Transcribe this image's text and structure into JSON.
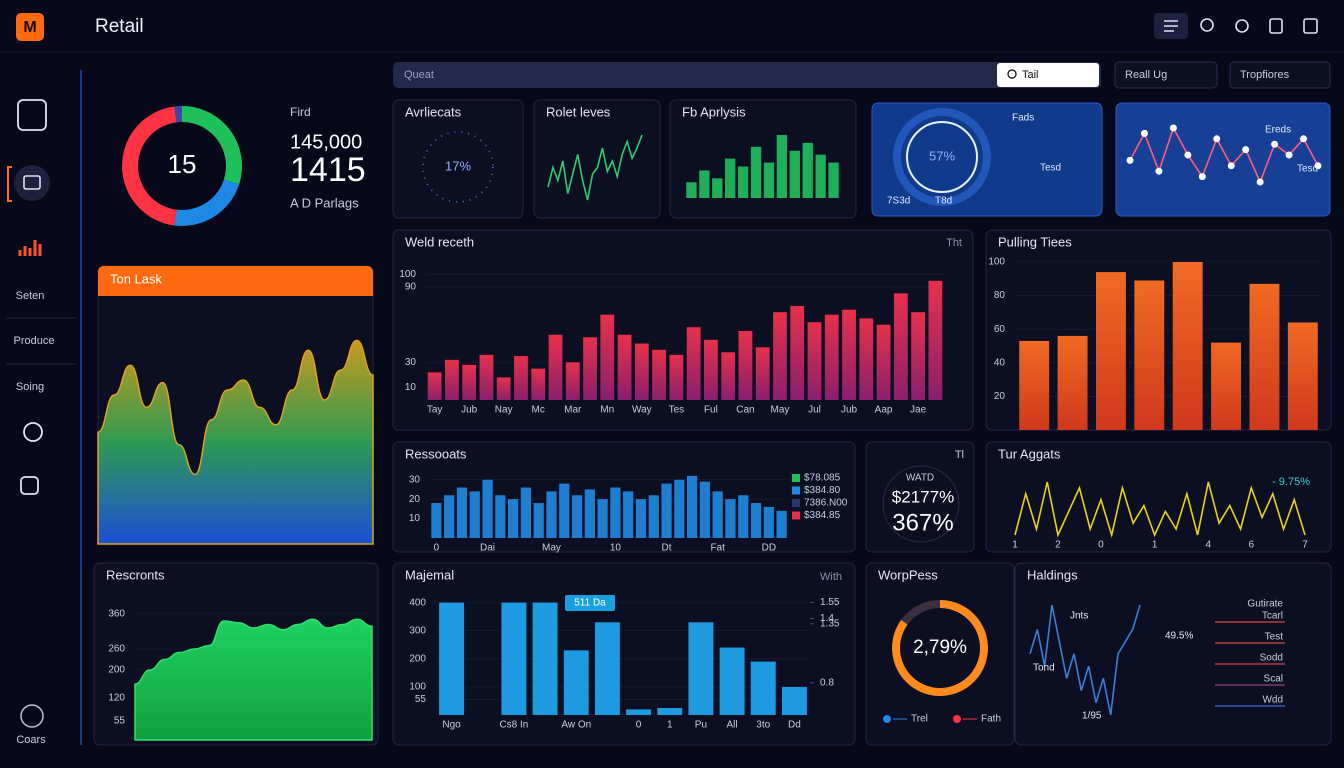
{
  "header": {
    "logo": "M",
    "title": "Retail"
  },
  "sidebar": {
    "items": [
      "Seten",
      "Produce",
      "Soing"
    ],
    "footer": "Coars"
  },
  "toolbar": {
    "search": "Queat",
    "search_button": "Tail",
    "filter_1": "Reall Ug",
    "filter_2": "Tropfiores"
  },
  "summary": {
    "label": "Fird",
    "value_1": "145,000",
    "value_2": "1415",
    "caption": "A D Parlags"
  },
  "chart_data": [
    {
      "type": "pie",
      "center_label": "15",
      "values": [
        30,
        22,
        46,
        2
      ],
      "colors": [
        "#1fbf5a",
        "#1e88e5",
        "#ff3344",
        "#3949ab"
      ]
    },
    {
      "type": "dial",
      "title": "Avrliecats",
      "label": "17%"
    },
    {
      "type": "line",
      "title": "Rolet leves",
      "values": [
        40,
        55,
        45,
        60,
        35,
        50,
        65,
        45,
        30,
        50,
        55,
        70,
        52,
        60,
        48,
        65,
        75,
        62,
        70,
        80
      ],
      "color": "#2ecc71"
    },
    {
      "type": "bar",
      "title": "Fb Aprlysis",
      "values": [
        20,
        35,
        25,
        50,
        40,
        65,
        45,
        80,
        60,
        70,
        55,
        45
      ],
      "color": "#1fae5a"
    },
    {
      "type": "dial",
      "label": "57%",
      "notes": [
        "Fads",
        "Tesd",
        "7S3d",
        "T8d"
      ]
    },
    {
      "type": "line",
      "values": [
        50,
        75,
        40,
        80,
        55,
        35,
        70,
        45,
        60,
        30,
        65,
        55,
        70,
        45
      ],
      "color": "#ff5d7a",
      "notes": [
        "Ereds",
        "Tesd"
      ]
    },
    {
      "type": "area",
      "title": "Ton Lask",
      "values": [
        45,
        60,
        72,
        55,
        65,
        40,
        28,
        50,
        62,
        66,
        55,
        48,
        62,
        78,
        58,
        70,
        82,
        68
      ],
      "gradient": [
        "#c89a1e",
        "#2e9a52",
        "#1a4fd6"
      ]
    },
    {
      "type": "area",
      "title": "Rescronts",
      "values": [
        160,
        200,
        230,
        250,
        260,
        270,
        340,
        335,
        320,
        330,
        315,
        330,
        345,
        320,
        330,
        345,
        325
      ],
      "ylim": [
        0,
        400
      ],
      "yticks": [
        55,
        120,
        200,
        260,
        360
      ],
      "gradient": [
        "#1fd060",
        "#10a040"
      ]
    },
    {
      "type": "bar",
      "title": "Weld receth",
      "note": "Tht",
      "values": [
        22,
        32,
        28,
        36,
        18,
        35,
        25,
        52,
        30,
        50,
        68,
        52,
        45,
        40,
        36,
        58,
        48,
        38,
        55,
        42,
        70,
        75,
        62,
        68,
        72,
        65,
        60,
        85,
        70,
        95
      ],
      "categories": [
        "Tay",
        null,
        "Jub",
        null,
        "Nay",
        null,
        "Mc",
        null,
        "Mar",
        null,
        "Mn",
        null,
        "Way",
        null,
        "Tes",
        null,
        "Ful",
        null,
        "Can",
        null,
        "May",
        null,
        "Jul",
        null,
        "Jub",
        null,
        "Aap",
        null,
        "Jae",
        null
      ],
      "ylim": [
        0,
        110
      ],
      "yticks": [
        10,
        30,
        90,
        100
      ],
      "gradient": [
        "#e8304a",
        "#8a1f6e"
      ]
    },
    {
      "type": "bar",
      "title": "Pulling Tiees",
      "values": [
        53,
        56,
        94,
        89,
        100,
        52,
        87,
        64
      ],
      "ylim": [
        0,
        100
      ],
      "yticks": [
        20,
        40,
        60,
        80,
        100
      ],
      "gradient": [
        "#f06a24",
        "#d0381c"
      ]
    },
    {
      "type": "bar",
      "title": "Ressooats",
      "values": [
        18,
        22,
        26,
        24,
        30,
        22,
        20,
        26,
        18,
        24,
        28,
        22,
        25,
        20,
        26,
        24,
        20,
        22,
        28,
        30,
        32,
        29,
        24,
        20,
        22,
        18,
        16,
        14
      ],
      "categories": [
        "0",
        null,
        null,
        null,
        "Dai",
        null,
        null,
        null,
        null,
        "May",
        null,
        null,
        null,
        null,
        "10",
        null,
        null,
        null,
        "Dt",
        null,
        null,
        null,
        "Fat",
        null,
        null,
        null,
        "DD",
        null
      ],
      "ylim": [
        0,
        35
      ],
      "yticks": [
        10,
        20,
        30
      ],
      "color": "#1e7fd0",
      "legend": [
        {
          "name": "$78.085",
          "color": "#1fbf5a"
        },
        {
          "name": "$384.80",
          "color": "#1e88e5"
        },
        {
          "name": "7386.N00",
          "color": "#2a3570"
        },
        {
          "name": "$384.85",
          "color": "#e0304a"
        }
      ]
    },
    {
      "type": "stat",
      "label": "WATD",
      "value_1": "$2177%",
      "value_2": "367%",
      "note": "Tl"
    },
    {
      "type": "line",
      "title": "Tur Aggats",
      "note": "- 9.75%",
      "values": [
        5,
        12,
        6,
        14,
        5,
        9,
        13,
        6,
        11,
        5,
        13,
        7,
        10,
        5,
        9,
        6,
        12,
        5,
        14,
        7,
        10,
        6,
        13,
        8,
        12,
        6,
        11,
        5
      ],
      "categories": [
        "1",
        null,
        null,
        null,
        "2",
        null,
        null,
        null,
        "0",
        null,
        null,
        null,
        null,
        "1",
        null,
        null,
        null,
        null,
        "4",
        null,
        null,
        null,
        "6",
        null,
        null,
        null,
        null,
        "7"
      ],
      "color": "#e8d21a"
    },
    {
      "type": "bar",
      "title": "Majemal",
      "note": "With",
      "annotation": "511 Da",
      "values": [
        400,
        0,
        400,
        400,
        230,
        330,
        20,
        25,
        330,
        240,
        190,
        100
      ],
      "categories": [
        "Ngo",
        null,
        "Cs8 In",
        null,
        "Aw On",
        null,
        "0",
        "1",
        "Pu",
        "All",
        "3to",
        "Dd"
      ],
      "ylim": [
        0,
        420
      ],
      "yticks": [
        55,
        100,
        200,
        300,
        400
      ],
      "y2lim": [
        0.5,
        1.6
      ],
      "y2ticks": [
        0.8,
        1.35,
        1.4,
        1.55
      ],
      "color": "#1e9be0"
    },
    {
      "type": "pie",
      "title": "WorpPess",
      "center_label": "2,79%",
      "values": [
        85,
        15
      ],
      "colors": [
        "#ff8a1e",
        "#3a2f3f"
      ],
      "legend": [
        {
          "name": "Trel",
          "color": "#1e88e5"
        },
        {
          "name": "Fath",
          "color": "#ff3344"
        }
      ]
    },
    {
      "type": "line",
      "title": "Haldings",
      "values": [
        50,
        60,
        45,
        70,
        55,
        40,
        50,
        35,
        45,
        30,
        40,
        25,
        50,
        55,
        60,
        70
      ],
      "color": "#3a7fd5",
      "notes": [
        "Jnts",
        "49.5%",
        "1/95",
        "Tond"
      ],
      "legend_title": "Gutirate",
      "legend": [
        {
          "name": "Tcarl",
          "color": "#e04a3a"
        },
        {
          "name": "Test",
          "color": "#e04a3a"
        },
        {
          "name": "Sodd",
          "color": "#d83a5a"
        },
        {
          "name": "Scal",
          "color": "#9a3a8a"
        },
        {
          "name": "Wdd",
          "color": "#3a6ad5"
        }
      ]
    }
  ]
}
